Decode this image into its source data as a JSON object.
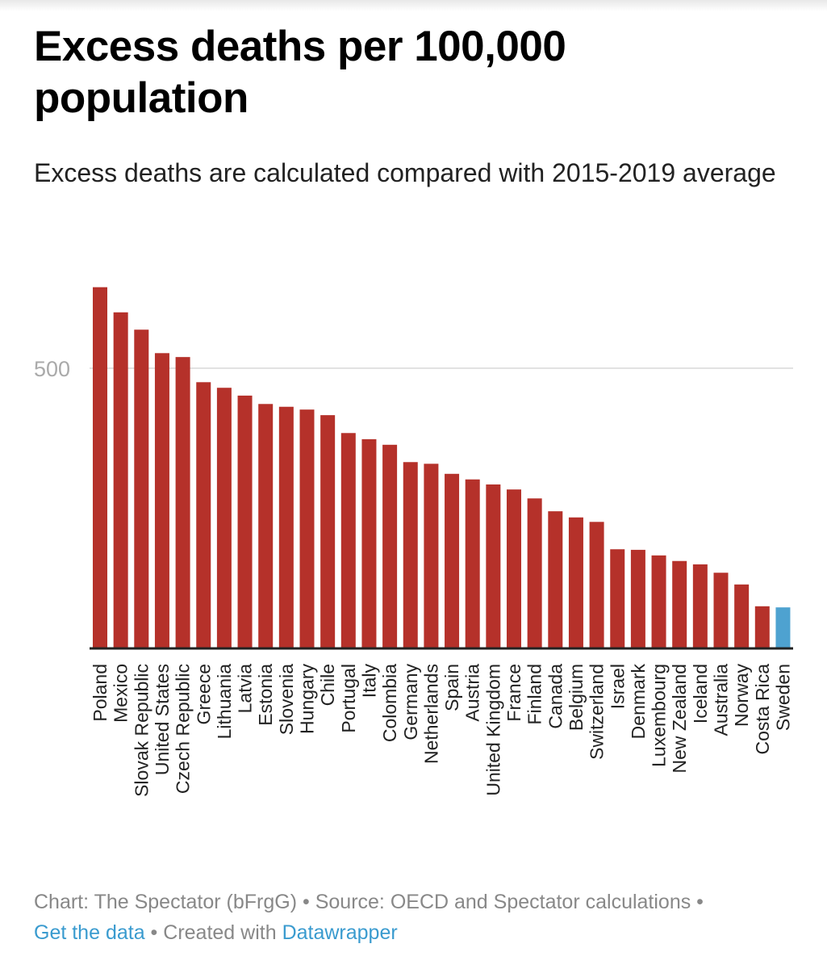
{
  "chart_data": {
    "type": "bar",
    "title": "Excess deaths per 100,000 population",
    "subtitle": "Excess deaths are calculated compared with 2015-2019 average",
    "categories": [
      "Poland",
      "Mexico",
      "Slovak Republic",
      "United States",
      "Czech Republic",
      "Greece",
      "Lithuania",
      "Latvia",
      "Estonia",
      "Slovenia",
      "Hungary",
      "Chile",
      "Portugal",
      "Italy",
      "Colombia",
      "Germany",
      "Netherlands",
      "Spain",
      "Austria",
      "United Kingdom",
      "France",
      "Finland",
      "Canada",
      "Belgium",
      "Switzerland",
      "Israel",
      "Denmark",
      "Luxembourg",
      "New Zealand",
      "Iceland",
      "Australia",
      "Norway",
      "Costa Rica",
      "Sweden"
    ],
    "values": [
      645,
      600,
      569,
      527,
      520,
      475,
      465,
      451,
      436,
      431,
      426,
      416,
      384,
      373,
      363,
      332,
      329,
      311,
      301,
      292,
      283,
      267,
      244,
      233,
      225,
      176,
      175,
      165,
      155,
      149,
      134,
      113,
      74,
      72
    ],
    "highlight": "Sweden",
    "colors": {
      "default": "#b5312a",
      "highlight": "#4ea2d0",
      "grid": "#e2e2e2",
      "axis": "#222222"
    },
    "y_ticks": [
      500
    ],
    "ylim": [
      0,
      660
    ],
    "grid": true,
    "xlabel": "",
    "ylabel": ""
  },
  "footer": {
    "chart_credit": "Chart: The Spectator (bFrgG)",
    "sep1": " • ",
    "source": "Source: OECD and Spectator calculations",
    "sep2": " • ",
    "get_data": "Get the data",
    "sep3": " • ",
    "created_with": "Created with ",
    "datawrapper": "Datawrapper"
  }
}
